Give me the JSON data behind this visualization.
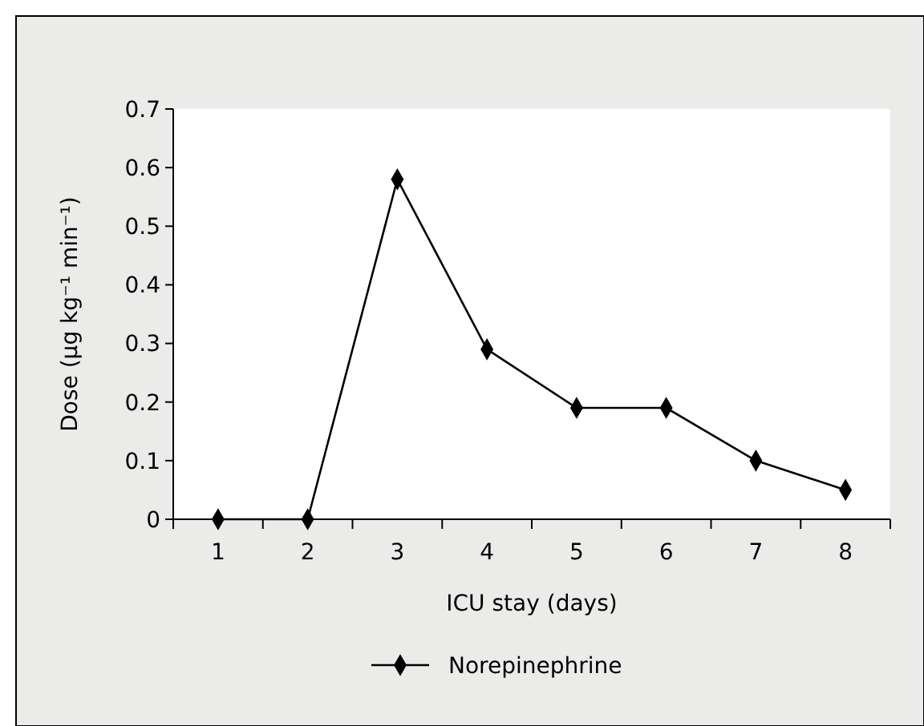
{
  "chart_data": {
    "type": "line",
    "xlabel": "ICU stay (days)",
    "ylabel": "Dose (μg kg⁻¹ min⁻¹)",
    "categories": [
      "1",
      "2",
      "3",
      "4",
      "5",
      "6",
      "7",
      "8"
    ],
    "series": [
      {
        "name": "Norepinephrine",
        "color": "#000000",
        "values": [
          0,
          0,
          0.58,
          0.29,
          0.19,
          0.19,
          0.1,
          0.05
        ]
      }
    ],
    "ylim": [
      0,
      0.7
    ],
    "yticks": [
      0,
      0.1,
      0.2,
      0.3,
      0.4,
      0.5,
      0.6,
      0.7
    ],
    "legend": "bottom",
    "marker": "diamond",
    "line_style": "solid",
    "grid": false
  }
}
